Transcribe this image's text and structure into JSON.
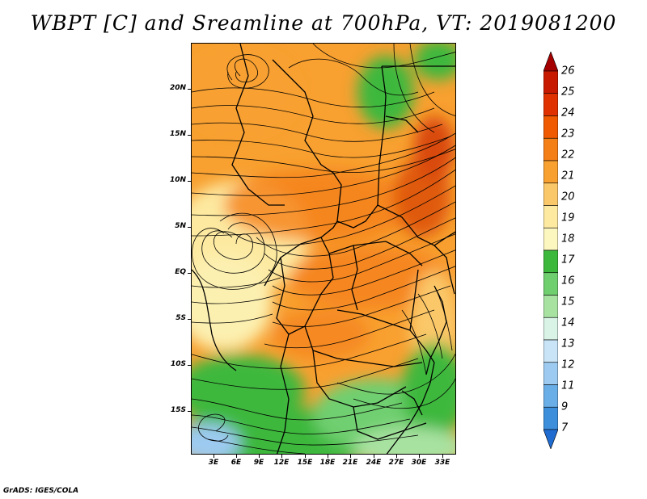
{
  "title": "WBPT [C] and Sreamline at 700hPa, VT: 2019081200",
  "latitude_labels": [
    "20N",
    "15N",
    "10N",
    "5N",
    "EQ",
    "5S",
    "10S",
    "15S"
  ],
  "longitude_labels": [
    "3E",
    "6E",
    "9E",
    "12E",
    "15E",
    "18E",
    "21E",
    "24E",
    "27E",
    "30E",
    "33E"
  ],
  "colorbar": {
    "labels": [
      "26",
      "25",
      "24",
      "23",
      "22",
      "21",
      "20",
      "19",
      "18",
      "17",
      "16",
      "15",
      "14",
      "13",
      "12",
      "11",
      "9",
      "7"
    ],
    "colors": [
      "#a50000",
      "#c81a00",
      "#e03200",
      "#f05a00",
      "#f57f17",
      "#f8a030",
      "#fbc869",
      "#fde9a0",
      "#fcf6bf",
      "#3cb83c",
      "#6fcf6f",
      "#a8e2a1",
      "#d9f3e6",
      "#c9e4f7",
      "#9ccaf0",
      "#6aaee7",
      "#3d8edb",
      "#1f6bd0"
    ]
  },
  "footer": "GrADS: IGES/COLA"
}
